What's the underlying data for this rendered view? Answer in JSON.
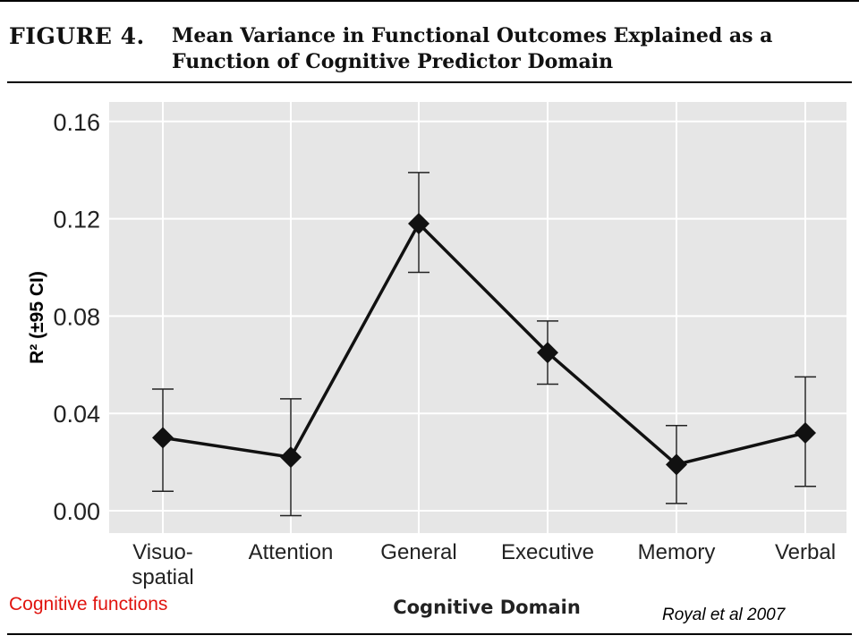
{
  "figure": {
    "label": "FIGURE 4.",
    "title": "Mean Variance in Functional Outcomes Explained as a Function of Cognitive Predictor Domain"
  },
  "annotation": {
    "text": "Cognitive functions",
    "color": "#e0140f"
  },
  "citation": {
    "text": "Royal et al 2007"
  },
  "chart_data": {
    "type": "line",
    "categories": [
      [
        "Visuo-",
        "spatial"
      ],
      [
        "Attention"
      ],
      [
        "General"
      ],
      [
        "Executive"
      ],
      [
        "Memory"
      ],
      [
        "Verbal"
      ]
    ],
    "series": [
      {
        "values": [
          0.03,
          0.022,
          0.118,
          0.065,
          0.019,
          0.032
        ],
        "ci_lower": [
          0.008,
          -0.002,
          0.098,
          0.052,
          0.003,
          0.01
        ],
        "ci_upper": [
          0.05,
          0.046,
          0.139,
          0.078,
          0.035,
          0.055
        ],
        "marker": "diamond",
        "color": "#111111"
      }
    ],
    "title": "",
    "xlabel": "Cognitive Domain",
    "ylabel": "R² (±95 CI)",
    "ylim": [
      -0.01,
      0.165
    ],
    "yticks": [
      "0.00",
      "0.04",
      "0.08",
      "0.12",
      "0.16"
    ],
    "ytick_values": [
      0,
      0.04,
      0.08,
      0.12,
      0.16
    ],
    "grid": true,
    "plot_background": "#e6e6e6"
  }
}
